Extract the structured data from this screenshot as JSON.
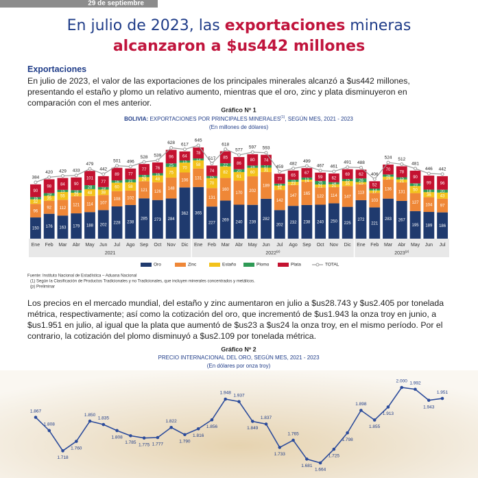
{
  "header": {
    "date": "29 de septiembre",
    "title": [
      "En julio de 2023, las ",
      "exportaciones",
      " mineras",
      "alcanzaron a $us442 millones"
    ]
  },
  "section": "Exportaciones",
  "paragraphs": [
    "En julio de 2023, el valor de las exportaciones de los principales minerales alcanzó a $us442 millones, presentando el estaño y plomo un relativo aumento, mientras que el oro, zinc y plata disminuyeron en comparación con el mes anterior.",
    "Los precios en el mercado mundial, del estaño y zinc aumentaron en julio a $us28.743 y $us2.405 por tonelada métrica, respectivamente; así como la cotización del oro, que incrementó de $us1.943 la onza troy en junio, a $us1.951 en julio, al igual que la plata que aumentó de $us23 a $us24 la onza troy, en el mismo período. Por el contrario, la cotización del plomo disminuyó a $us2.109 por tonelada métrica."
  ],
  "chart_data": [
    {
      "type": "stacked-bar",
      "title": "Gráfico Nº 1",
      "subtitle": [
        "BOLIVIA:",
        " EXPORTACIONES POR PRINCIPALES MINERALES",
        "(1)",
        ", SEGÚN MES, 2021 - 2023"
      ],
      "unit": "(En millones de dólares)",
      "categories": [
        "Ene",
        "Feb",
        "Mar",
        "Abr",
        "May",
        "Jun",
        "Jul",
        "Ago",
        "Sep",
        "Oct",
        "Nov",
        "Dic",
        "Ene",
        "Feb",
        "Mar",
        "Abr",
        "May",
        "Jun",
        "Jul",
        "Ago",
        "Sep",
        "Oct",
        "Nov",
        "Dic",
        "Ene",
        "Feb",
        "Mar",
        "Abr",
        "May",
        "Jun",
        "Jul"
      ],
      "years": [
        {
          "name": "2021"
        },
        {
          "name": "2022",
          "note": "(p)"
        },
        {
          "name": "2023",
          "note": "(p)"
        }
      ],
      "series": [
        {
          "name": "Oro",
          "color": "#1f3a6e",
          "values": [
            150,
            176,
            163,
            179,
            188,
            202,
            228,
            238,
            285,
            273,
            284,
            362,
            365,
            227,
            269,
            240,
            239,
            282,
            202,
            232,
            238,
            240,
            250,
            225,
            272,
            221,
            283,
            267,
            195,
            189,
            186
          ]
        },
        {
          "name": "Zinc",
          "color": "#ef8737",
          "values": [
            96,
            92,
            112,
            121,
            114,
            107,
            108,
            102,
            121,
            126,
            148,
            106,
            131,
            131,
            160,
            170,
            202,
            189,
            142,
            147,
            165,
            122,
            114,
            147,
            113,
            103,
            136,
            131,
            127,
            104,
            97
          ]
        },
        {
          "name": "Estaño",
          "color": "#f3c21a",
          "values": [
            32,
            35,
            55,
            25,
            48,
            38,
            60,
            58,
            29,
            48,
            75,
            70,
            58,
            70,
            82,
            61,
            60,
            31,
            31,
            23,
            14,
            21,
            21,
            35,
            15,
            17,
            19,
            21,
            50,
            36,
            43
          ]
        },
        {
          "name": "Plomo",
          "color": "#2e9a55",
          "values": [
            16,
            19,
            15,
            18,
            28,
            18,
            16,
            21,
            16,
            16,
            25,
            15,
            13,
            15,
            22,
            20,
            16,
            17,
            14,
            15,
            15,
            25,
            14,
            15,
            26,
            13,
            16,
            15,
            19,
            18,
            20
          ]
        },
        {
          "name": "Plata",
          "color": "#c41230",
          "values": [
            90,
            98,
            84,
            90,
            101,
            77,
            89,
            77,
            77,
            76,
            96,
            64,
            78,
            74,
            85,
            86,
            80,
            74,
            70,
            65,
            67,
            59,
            62,
            69,
            62,
            52,
            70,
            78,
            90,
            99,
            96
          ]
        },
        {
          "name": "TOTAL",
          "type": "line",
          "color": "#9a9a9a",
          "values": [
            384,
            420,
            429,
            433,
            479,
            442,
            501,
            496,
            528,
            539,
            628,
            617,
            645,
            517,
            618,
            577,
            597,
            593,
            459,
            482,
            499,
            467,
            461,
            491,
            488,
            406,
            524,
            512,
            481,
            446,
            442
          ]
        }
      ],
      "notes": [
        "Fuente: Instituto Nacional de Estadística – Aduana Nacional",
        "(1) Según la Clasificación de Productos Tradicionales y no Tradicionales, que incluyen minerales concentrados y metálicos.",
        "(p) Preliminar"
      ]
    },
    {
      "type": "line",
      "title": "Gráfico Nº 2",
      "subtitle": "PRECIO INTERNACIONAL DEL ORO, SEGÚN MES, 2021 - 2023",
      "unit": "(En dólares por onza troy)",
      "color": "#2b4b9b",
      "values": [
        1867,
        1808,
        1718,
        1760,
        1850,
        1835,
        1808,
        1785,
        1775,
        1777,
        1822,
        1790,
        1816,
        1856,
        1948,
        1937,
        1849,
        1837,
        1733,
        1765,
        1681,
        1664,
        1725,
        1798,
        1898,
        1855,
        1913,
        2000,
        1992,
        1943,
        1951
      ],
      "value_labels": [
        "1.867",
        "1.808",
        "1.718",
        "1.760",
        "1.850",
        "1.835",
        "1.808",
        "1.785",
        "1.775",
        "1.777",
        "1.822",
        "1.790",
        "1.816",
        "1.856",
        "1.948",
        "1.937",
        "1.849",
        "1.837",
        "1.733",
        "1.765",
        "1.681",
        "1.664",
        "1.725",
        "1.798",
        "1.898",
        "1.855",
        "1.913",
        "2.000",
        "1.992",
        "1.943",
        "1.951"
      ]
    }
  ]
}
